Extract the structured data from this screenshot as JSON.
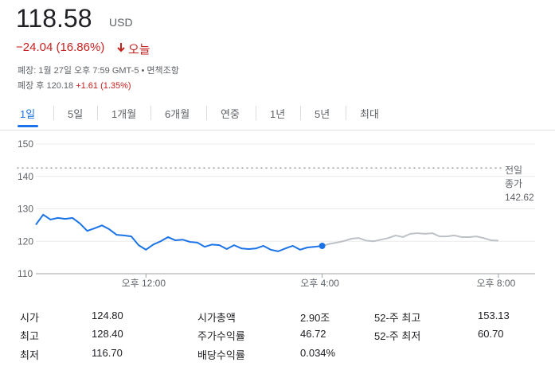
{
  "header": {
    "price": "118.58",
    "currency": "USD",
    "change": "−24.04 (16.86%)",
    "today": "오늘"
  },
  "status": {
    "closed": "폐장: 1월 27일 오후 7:59 GMT-5",
    "bullet": "•",
    "disclaimer": "면책조항"
  },
  "after_hours": {
    "label": "폐장 후 120.18",
    "change": "+1.61 (1.35%)"
  },
  "tabs": [
    "1일",
    "5일",
    "1개월",
    "6개월",
    "연중",
    "1년",
    "5년",
    "최대"
  ],
  "chart_data": {
    "type": "line",
    "x": [
      570,
      580,
      590,
      600,
      610,
      620,
      630,
      640,
      650,
      660,
      670,
      680,
      690,
      700,
      710,
      720,
      730,
      740,
      750,
      760,
      770,
      780,
      790,
      800,
      810,
      820,
      830,
      840,
      850,
      860,
      870,
      880,
      890,
      900,
      910,
      920,
      930,
      940,
      950,
      960,
      970,
      980,
      990,
      1000,
      1010,
      1020,
      1030,
      1040,
      1050,
      1060,
      1070,
      1080,
      1090,
      1100,
      1110,
      1120,
      1130,
      1140,
      1150,
      1160,
      1170,
      1180,
      1190,
      1200
    ],
    "series": [
      {
        "color": "#1a73e8",
        "values": [
          125.1,
          128.2,
          126.7,
          127.2,
          126.9,
          127.2,
          125.5,
          123.2,
          124,
          124.9,
          123.7,
          122,
          121.8,
          121.5,
          118.8,
          117.4,
          119,
          120,
          121.3,
          120.3,
          120.5,
          119.8,
          119.6,
          118.3,
          119,
          118.8,
          117.6,
          118.8,
          117.8,
          117.6,
          117.8,
          118.6,
          117.4,
          116.9,
          117.8,
          118.6,
          117.4,
          118.1,
          118.3,
          118.58,
          null,
          null,
          null,
          null,
          null,
          null,
          null,
          null,
          null,
          null,
          null,
          null,
          null,
          null,
          null,
          null,
          null,
          null,
          null,
          null,
          null,
          null,
          null,
          null
        ]
      },
      {
        "color": "#bdc1c6",
        "values": [
          null,
          null,
          null,
          null,
          null,
          null,
          null,
          null,
          null,
          null,
          null,
          null,
          null,
          null,
          null,
          null,
          null,
          null,
          null,
          null,
          null,
          null,
          null,
          null,
          null,
          null,
          null,
          null,
          null,
          null,
          null,
          null,
          null,
          null,
          null,
          null,
          null,
          null,
          null,
          118.58,
          119.2,
          119.6,
          120.1,
          120.8,
          121,
          120.2,
          120,
          120.5,
          121,
          121.8,
          121.3,
          122.3,
          122.5,
          122.3,
          122.5,
          121.5,
          121.5,
          121.8,
          121.3,
          121.3,
          121.5,
          121,
          120.3,
          120.18
        ]
      }
    ],
    "xlim": [
      570,
      1250
    ],
    "xticks": [
      {
        "value": 720,
        "label": "오후 12:00"
      },
      {
        "value": 960,
        "label": "오후 4:00"
      },
      {
        "value": 1200,
        "label": "오후 8:00"
      }
    ],
    "ylim": [
      110,
      150
    ],
    "yticks": [
      110,
      120,
      130,
      140,
      150
    ],
    "grid": true,
    "previous_close": {
      "label": [
        "전일",
        "종가"
      ],
      "value": 142.62
    }
  },
  "stats": [
    [
      [
        "시가",
        "124.80"
      ],
      [
        "최고",
        "128.40"
      ],
      [
        "최저",
        "116.70"
      ]
    ],
    [
      [
        "시가총액",
        "2.90조"
      ],
      [
        "주가수익률",
        "46.72"
      ],
      [
        "배당수익률",
        "0.034%"
      ]
    ],
    [
      [
        "52-주 최고",
        "153.13"
      ],
      [
        "52-주 최저",
        "60.70"
      ]
    ]
  ]
}
